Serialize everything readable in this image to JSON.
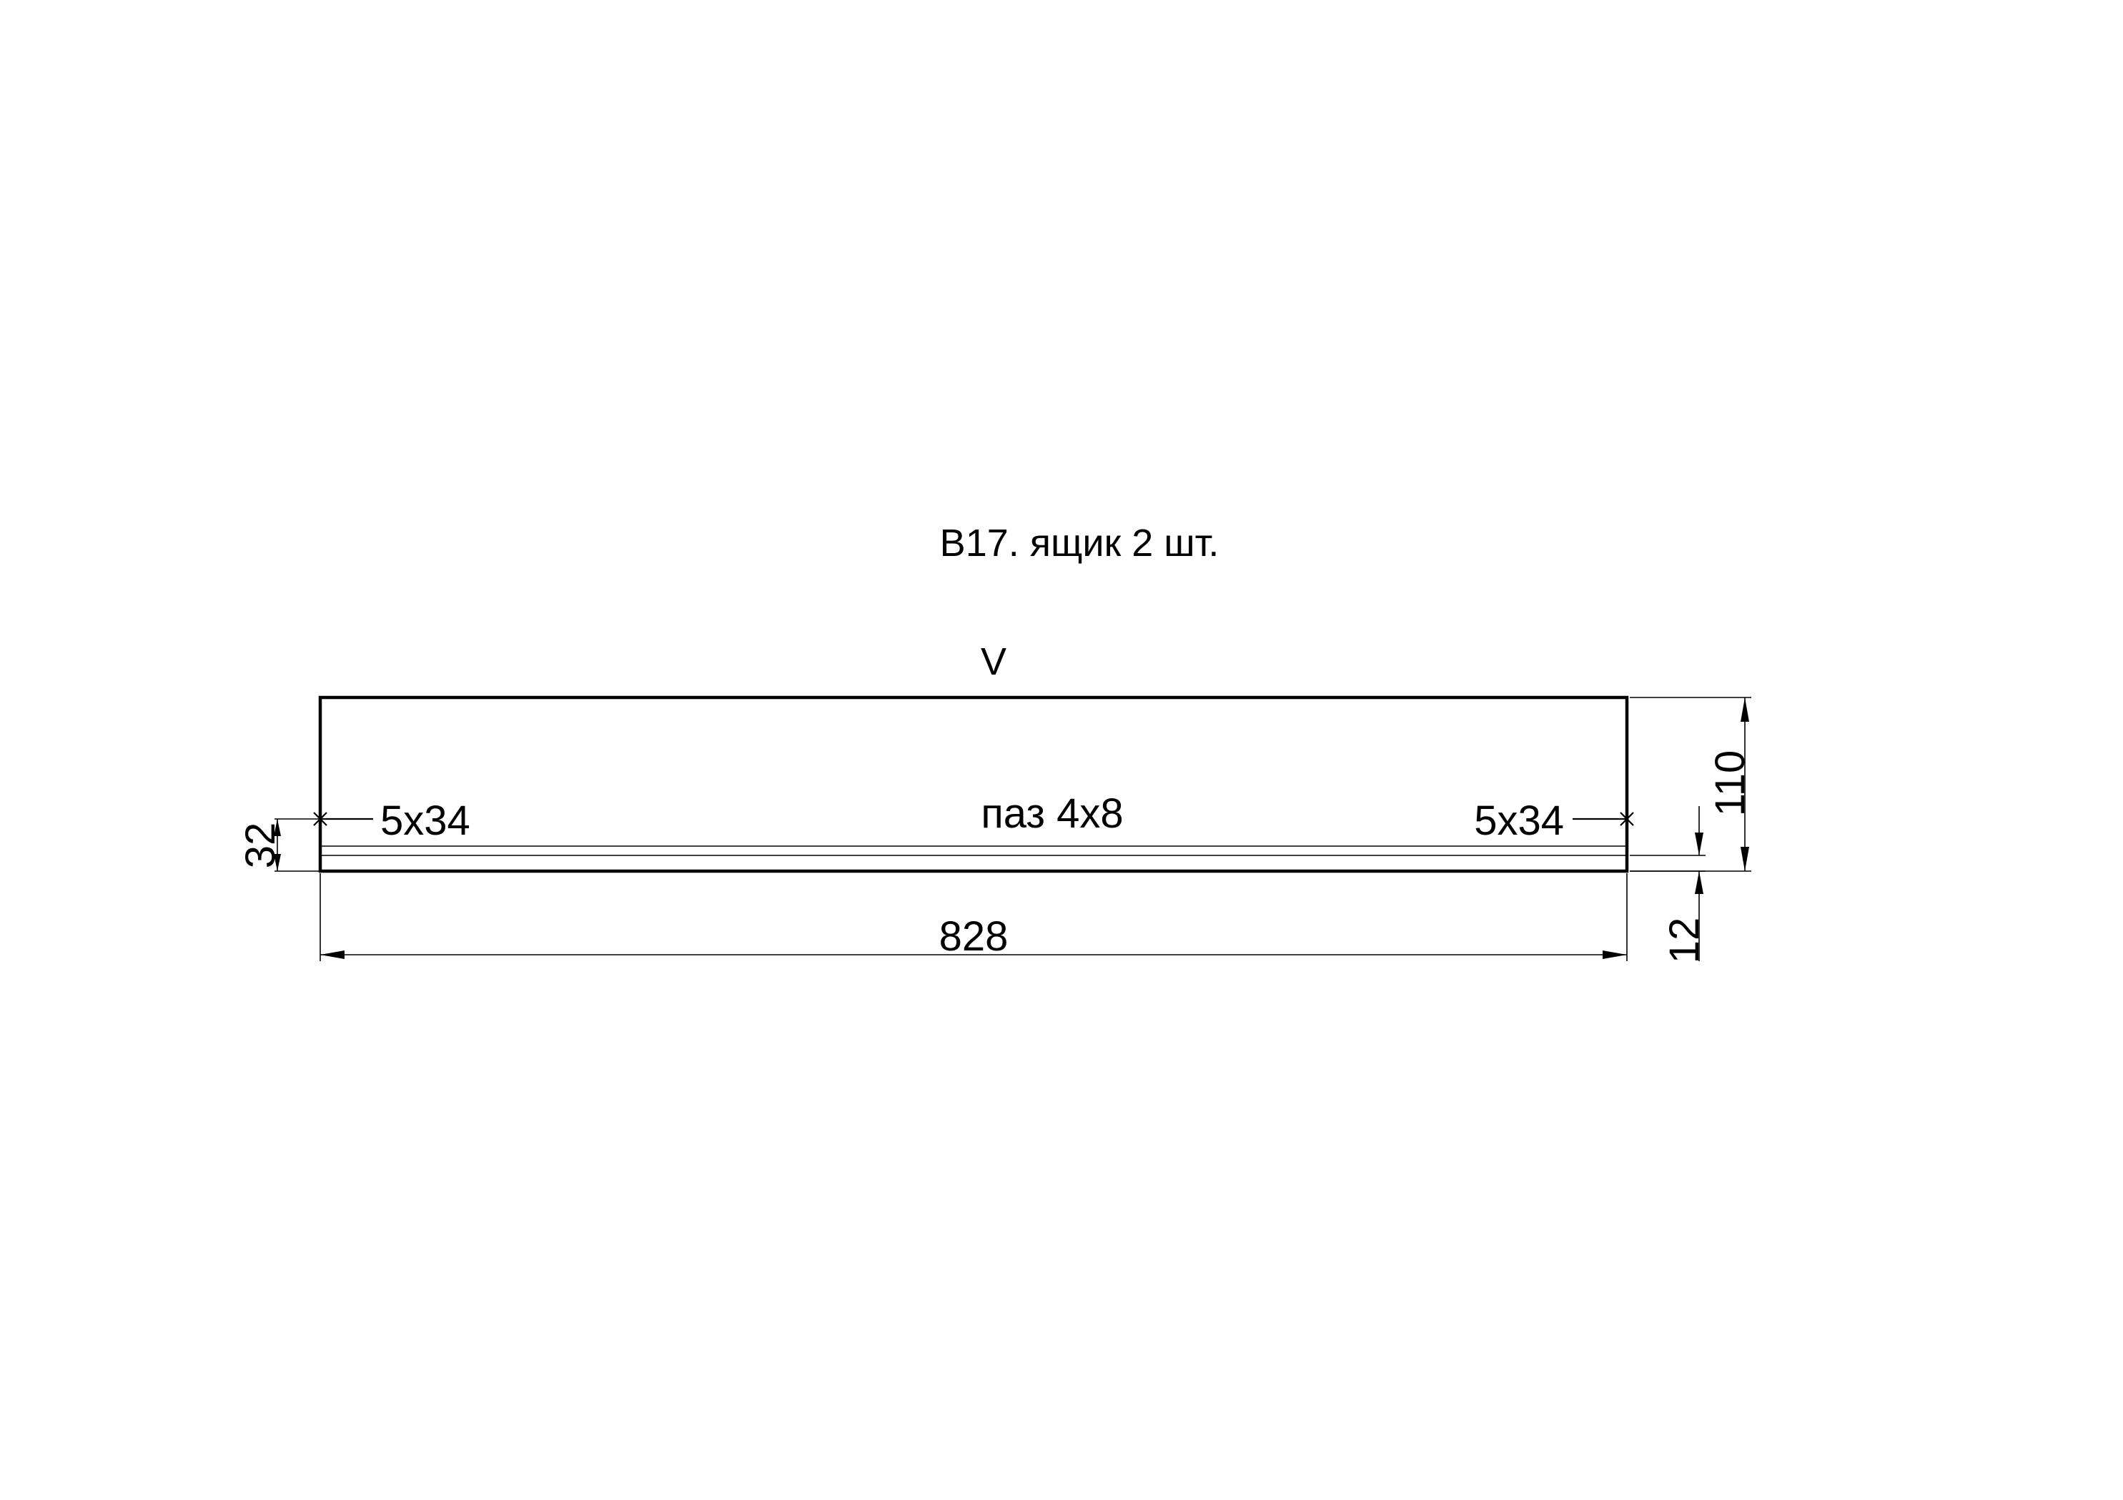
{
  "drawing": {
    "title": "В17. ящик 2 шт.",
    "view_mark": "V",
    "groove_label": "паз 4х8",
    "hole_left_label": "5х34",
    "hole_right_label": "5х34",
    "dimensions": {
      "length": "828",
      "height": "110",
      "groove_offset": "12",
      "hole_offset": "32"
    },
    "line_color": "#000000",
    "background": "#ffffff"
  }
}
